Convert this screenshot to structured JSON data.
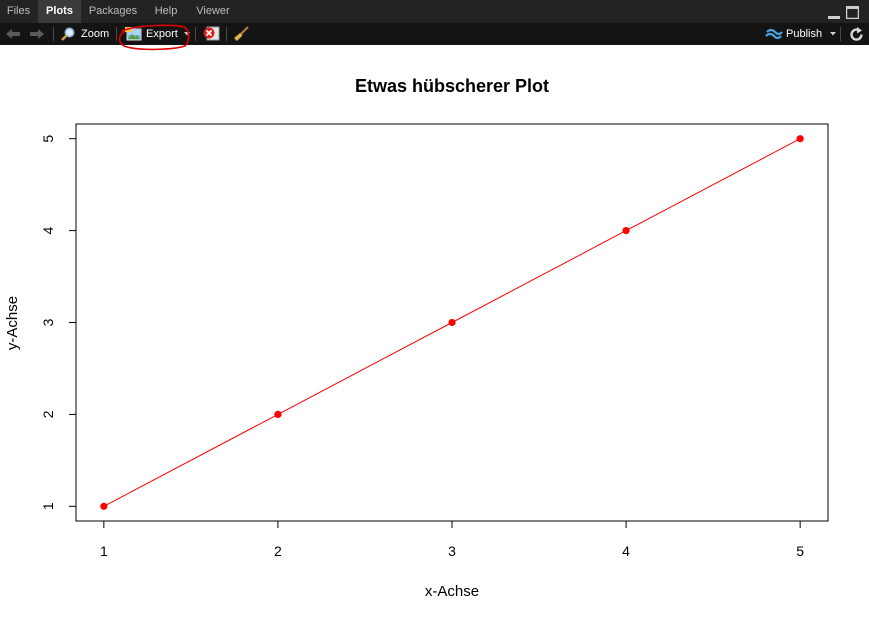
{
  "tabs": [
    {
      "label": "Files",
      "active": false
    },
    {
      "label": "Plots",
      "active": true
    },
    {
      "label": "Packages",
      "active": false
    },
    {
      "label": "Help",
      "active": false
    },
    {
      "label": "Viewer",
      "active": false
    }
  ],
  "toolbar": {
    "zoom_label": "Zoom",
    "export_label": "Export",
    "publish_label": "Publish",
    "icons": [
      "back-arrow-icon",
      "forward-arrow-icon",
      "magnifier-icon",
      "export-image-icon",
      "remove-plot-icon",
      "broom-icon",
      "publish-icon",
      "refresh-icon"
    ]
  },
  "colors": {
    "tabbar_bg": "#232323",
    "toolbar_bg": "#141414",
    "annotation": "#e00000",
    "series": "#ff0000",
    "publish_accent": "#4aa3df"
  },
  "chart_data": {
    "type": "line",
    "title": "Etwas hübscherer Plot",
    "xlabel": "x-Achse",
    "ylabel": "y-Achse",
    "x": [
      1,
      2,
      3,
      4,
      5
    ],
    "series": [
      {
        "values": [
          1,
          2,
          3,
          4,
          5
        ],
        "color": "#ff0000",
        "markers": "filled-circle"
      }
    ],
    "xlim": [
      0.84,
      5.16
    ],
    "ylim": [
      0.84,
      5.16
    ],
    "xticks": [
      "1",
      "2",
      "3",
      "4",
      "5"
    ],
    "yticks": [
      "1",
      "2",
      "3",
      "4",
      "5"
    ],
    "grid": false,
    "legend": "none"
  }
}
